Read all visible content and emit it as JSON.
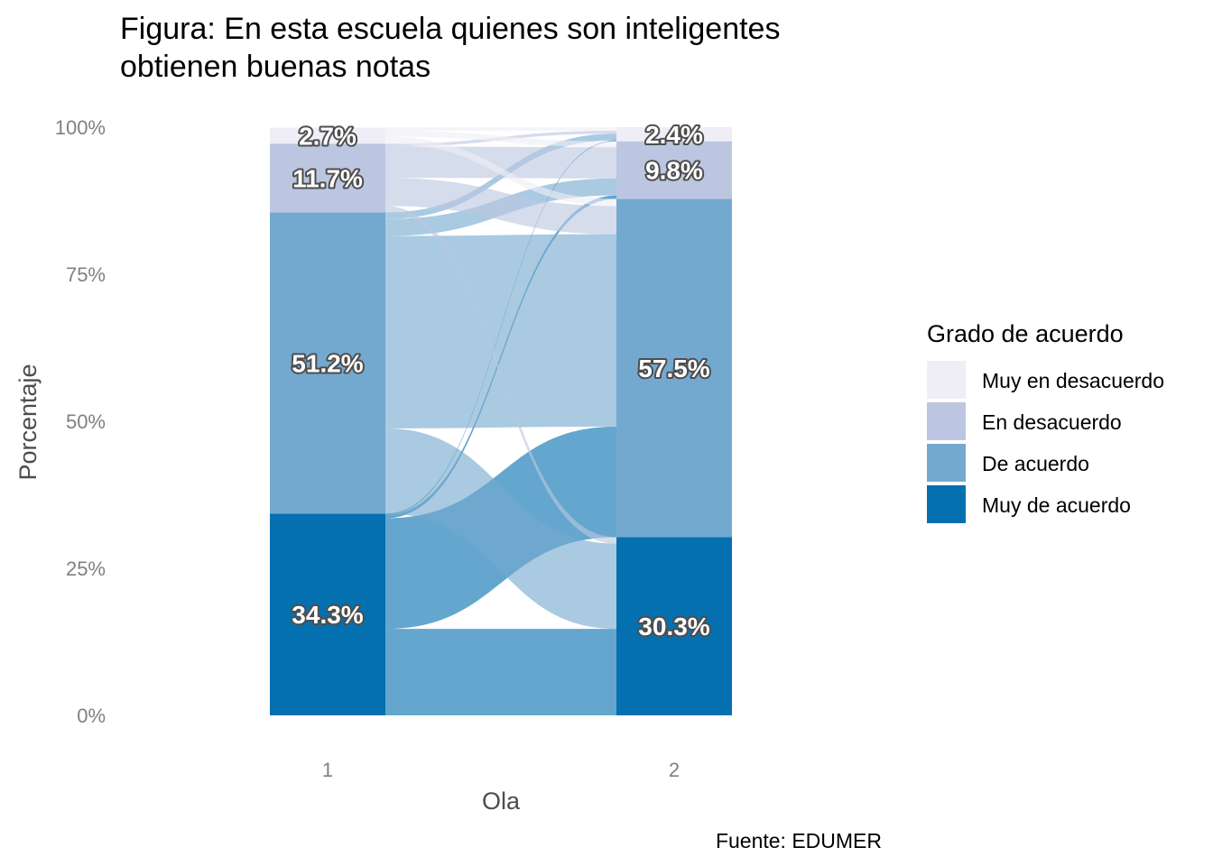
{
  "chart_data": {
    "type": "alluvial",
    "title_lines": [
      "Figura: En esta escuela quienes son inteligentes",
      "obtienen buenas notas"
    ],
    "xlabel": "Ola",
    "ylabel": "Porcentaje",
    "caption": "Fuente: EDUMER",
    "categories": [
      "1",
      "2"
    ],
    "y_ticks": [
      "0%",
      "25%",
      "50%",
      "75%",
      "100%"
    ],
    "ylim": [
      0,
      100
    ],
    "legend": {
      "title": "Grado de acuerdo",
      "position": "right",
      "items": [
        {
          "name": "Muy en desacuerdo",
          "color": "#efedf5"
        },
        {
          "name": "En desacuerdo",
          "color": "#bcc6e0"
        },
        {
          "name": "De acuerdo",
          "color": "#74a9cf"
        },
        {
          "name": "Muy de acuerdo",
          "color": "#0570b0"
        }
      ]
    },
    "series": [
      {
        "name": "Muy de acuerdo",
        "values": [
          34.3,
          30.3
        ],
        "labels": [
          "34.3%",
          "30.3%"
        ]
      },
      {
        "name": "De acuerdo",
        "values": [
          51.2,
          57.5
        ],
        "labels": [
          "51.2%",
          "57.5%"
        ]
      },
      {
        "name": "En desacuerdo",
        "values": [
          11.7,
          9.8
        ],
        "labels": [
          "11.7%",
          "9.8%"
        ]
      },
      {
        "name": "Muy en desacuerdo",
        "values": [
          2.7,
          2.4
        ],
        "labels": [
          "2.7%",
          "2.4%"
        ]
      }
    ],
    "flows": [
      {
        "from": "Muy de acuerdo",
        "to": "Muy de acuerdo",
        "value": 14.7
      },
      {
        "from": "Muy de acuerdo",
        "to": "De acuerdo",
        "value": 18.8
      },
      {
        "from": "Muy de acuerdo",
        "to": "En desacuerdo",
        "value": 0.6
      },
      {
        "from": "Muy de acuerdo",
        "to": "Muy en desacuerdo",
        "value": 0.2
      },
      {
        "from": "De acuerdo",
        "to": "Muy de acuerdo",
        "value": 14.5
      },
      {
        "from": "De acuerdo",
        "to": "De acuerdo",
        "value": 32.7
      },
      {
        "from": "De acuerdo",
        "to": "En desacuerdo",
        "value": 2.9
      },
      {
        "from": "De acuerdo",
        "to": "Muy en desacuerdo",
        "value": 1.1
      },
      {
        "from": "En desacuerdo",
        "to": "Muy de acuerdo",
        "value": 1.1
      },
      {
        "from": "En desacuerdo",
        "to": "De acuerdo",
        "value": 4.8
      },
      {
        "from": "En desacuerdo",
        "to": "En desacuerdo",
        "value": 5.3
      },
      {
        "from": "En desacuerdo",
        "to": "Muy en desacuerdo",
        "value": 0.5
      },
      {
        "from": "Muy en desacuerdo",
        "to": "Muy de acuerdo",
        "value": 0.0
      },
      {
        "from": "Muy en desacuerdo",
        "to": "De acuerdo",
        "value": 1.2
      },
      {
        "from": "Muy en desacuerdo",
        "to": "En desacuerdo",
        "value": 1.0
      },
      {
        "from": "Muy en desacuerdo",
        "to": "Muy en desacuerdo",
        "value": 0.6
      }
    ]
  }
}
